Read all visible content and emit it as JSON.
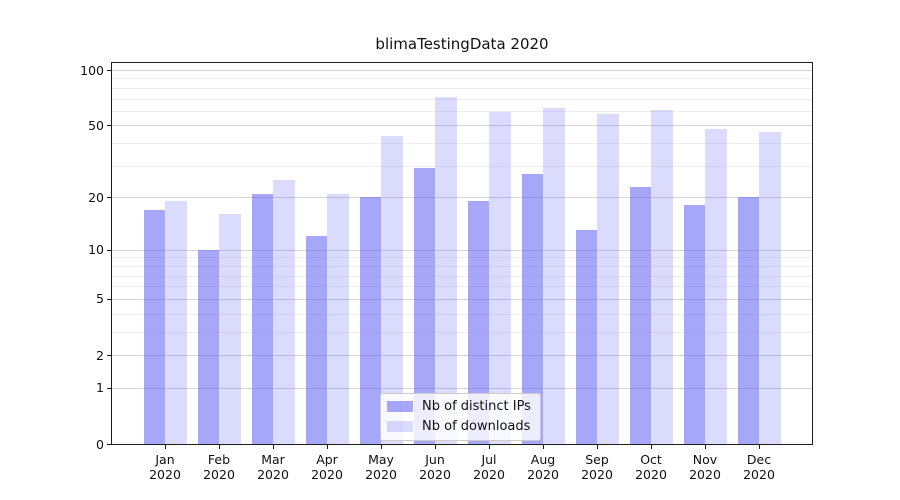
{
  "title": "blimaTestingData 2020",
  "chart_data": {
    "type": "bar",
    "title": "blimaTestingData 2020",
    "scale": "log1p",
    "x_tick_line1": [
      "Jan",
      "Feb",
      "Mar",
      "Apr",
      "May",
      "Jun",
      "Jul",
      "Aug",
      "Sep",
      "Oct",
      "Nov",
      "Dec"
    ],
    "x_tick_line2": "2020",
    "categories": [
      "Jan 2020",
      "Feb 2020",
      "Mar 2020",
      "Apr 2020",
      "May 2020",
      "Jun 2020",
      "Jul 2020",
      "Aug 2020",
      "Sep 2020",
      "Oct 2020",
      "Nov 2020",
      "Dec 2020"
    ],
    "series": [
      {
        "name": "Nb of distinct IPs",
        "color": "rgba(100,100,245,0.57)",
        "values": [
          17,
          10,
          21,
          12,
          20,
          29,
          19,
          27,
          13,
          23,
          18,
          20
        ]
      },
      {
        "name": "Nb of downloads",
        "color": "rgba(100,100,245,0.23)",
        "values": [
          19,
          16,
          25,
          21,
          44,
          71,
          59,
          62,
          58,
          61,
          48,
          46
        ]
      }
    ],
    "yticks": [
      100,
      50,
      20,
      10,
      5,
      2,
      1,
      0
    ],
    "minor_yticks": [
      3,
      4,
      6,
      7,
      8,
      9,
      30,
      40,
      60,
      70,
      80,
      90
    ],
    "ylim_top_value": 112,
    "grid": "both",
    "legend_position": "lower-center-inside",
    "colors": {
      "axis": "#1f1f1f",
      "major_grid": "rgba(176,176,176,0.55)",
      "minor_grid": "rgba(176,176,176,0.22)",
      "text": "#111111"
    }
  }
}
